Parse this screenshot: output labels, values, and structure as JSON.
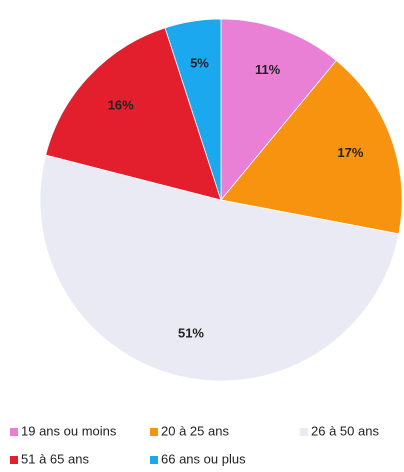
{
  "chart_data": {
    "type": "pie",
    "categories": [
      "19 ans ou moins",
      "20 à 25 ans",
      "26 à 50 ans",
      "51 à 65 ans",
      "66 ans ou plus"
    ],
    "values": [
      11,
      17,
      51,
      16,
      5
    ],
    "value_labels": [
      "11%",
      "17%",
      "51%",
      "16%",
      "5%"
    ],
    "colors": [
      "#ea80d6",
      "#f7930f",
      "#e9eaf4",
      "#e31f2d",
      "#1ba8ee"
    ],
    "legend": "bottom"
  }
}
